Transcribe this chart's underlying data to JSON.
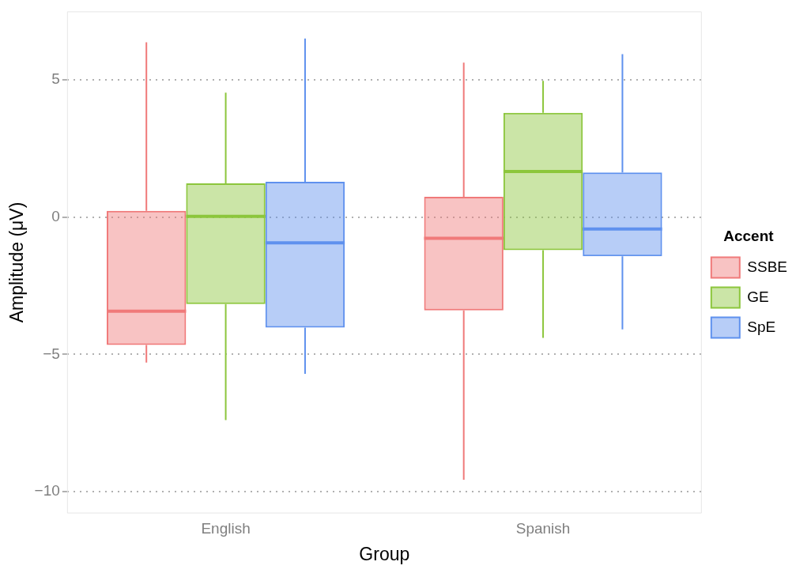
{
  "chart_data": {
    "type": "box",
    "xlabel": "Group",
    "ylabel": "Amplitude (μV)",
    "legend_title": "Accent",
    "legend": "right",
    "grid": "y",
    "categories": [
      "English",
      "Spanish"
    ],
    "ylim": [
      -10.8,
      7.5
    ],
    "yticks": [
      {
        "value": -10,
        "label": "−10"
      },
      {
        "value": -5,
        "label": "−5"
      },
      0,
      5
    ],
    "series": [
      {
        "name": "SSBE",
        "color": "#f07a7a",
        "boxes": [
          {
            "low": -5.3,
            "q1": -4.66,
            "median": -3.43,
            "q3": 0.23,
            "high": 6.37
          },
          {
            "low": -9.57,
            "q1": -3.4,
            "median": -0.77,
            "q3": 0.74,
            "high": 5.63
          }
        ]
      },
      {
        "name": "GE",
        "color": "#8cc63c",
        "boxes": [
          {
            "low": -7.4,
            "q1": -3.17,
            "median": 0.03,
            "q3": 1.23,
            "high": 4.54
          },
          {
            "low": -4.4,
            "q1": -1.2,
            "median": 1.66,
            "q3": 3.8,
            "high": 4.97
          }
        ]
      },
      {
        "name": "SpE",
        "color": "#5f91ee",
        "boxes": [
          {
            "low": -5.71,
            "q1": -4.03,
            "median": -0.94,
            "q3": 1.29,
            "high": 6.51
          },
          {
            "low": -4.09,
            "q1": -1.43,
            "median": -0.43,
            "q3": 1.63,
            "high": 5.94
          }
        ]
      }
    ]
  }
}
